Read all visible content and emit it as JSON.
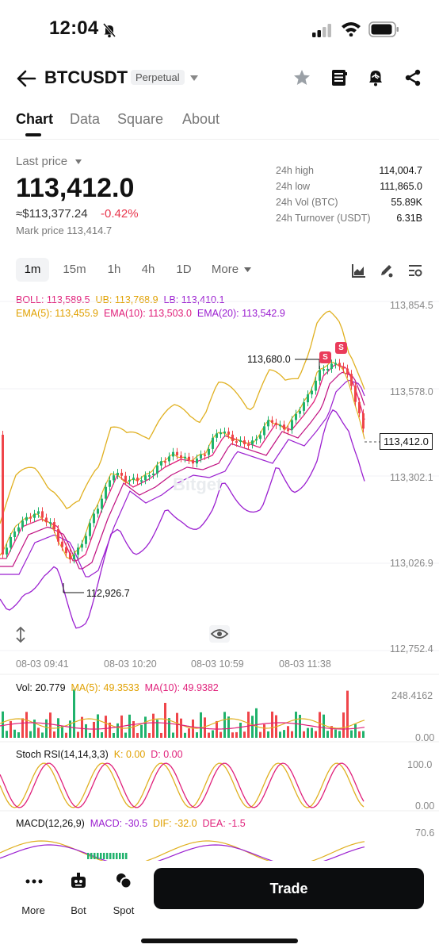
{
  "status": {
    "time": "12:04"
  },
  "header": {
    "pair": "BTCUSDT",
    "contract_type": "Perpetual"
  },
  "tabs": [
    {
      "label": "Chart",
      "active": true
    },
    {
      "label": "Data",
      "active": false
    },
    {
      "label": "Square",
      "active": false
    },
    {
      "label": "About",
      "active": false
    }
  ],
  "price": {
    "label": "Last price",
    "last": "113,412.0",
    "approx": "≈$113,377.24",
    "change": "-0.42%",
    "mark": "Mark price 113,414.7"
  },
  "stats": [
    {
      "label": "24h high",
      "value": "114,004.7"
    },
    {
      "label": "24h low",
      "value": "111,865.0"
    },
    {
      "label": "24h Vol (BTC)",
      "value": "55.89K"
    },
    {
      "label": "24h Turnover (USDT)",
      "value": "6.31B"
    }
  ],
  "timeframes": [
    "1m",
    "15m",
    "1h",
    "4h",
    "1D",
    "More"
  ],
  "indicators": {
    "boll": "BOLL: 113,589.5",
    "ub": "UB: 113,768.9",
    "lb": "LB: 113,410.1",
    "ema5": "EMA(5): 113,455.9",
    "ema10": "EMA(10): 113,503.0",
    "ema20": "EMA(20): 113,542.9",
    "vol": "Vol: 20.779",
    "vol_ma5": "MA(5): 49.3533",
    "vol_ma10": "MA(10): 49.9382",
    "stoch": "Stoch RSI(14,14,3,3)",
    "stoch_k": "K: 0.00",
    "stoch_d": "D: 0.00",
    "macd": "MACD(12,26,9)",
    "macd_v": "MACD: -30.5",
    "dif": "DIF: -32.0",
    "dea": "DEA: -1.5"
  },
  "price_axis": [
    "113,854.5",
    "113,578.0",
    "113,302.1",
    "113,026.9",
    "112,752.4"
  ],
  "time_axis": [
    "08-03 09:41",
    "08-03 10:20",
    "08-03 10:59",
    "08-03 11:38"
  ],
  "annotations": {
    "high": "113,680.0",
    "low": "112,926.7",
    "current": "113,412.0",
    "sell": "S"
  },
  "watermark": "Bitget",
  "vol_axis": [
    "248.4162",
    "0.00"
  ],
  "stoch_axis": [
    "100.0",
    "0.00"
  ],
  "macd_axis": [
    "70.6"
  ],
  "colors": {
    "up": "#20b26c",
    "down": "#ef454a",
    "boll": "#e0b020",
    "ema": "#e0207a",
    "purple": "#9b1fd0",
    "red": "#e8384f"
  },
  "bottom_nav": [
    {
      "label": "More",
      "icon": "more-dots-icon"
    },
    {
      "label": "Bot",
      "icon": "bot-icon"
    },
    {
      "label": "Spot",
      "icon": "spot-icon"
    }
  ],
  "trade_label": "Trade"
}
